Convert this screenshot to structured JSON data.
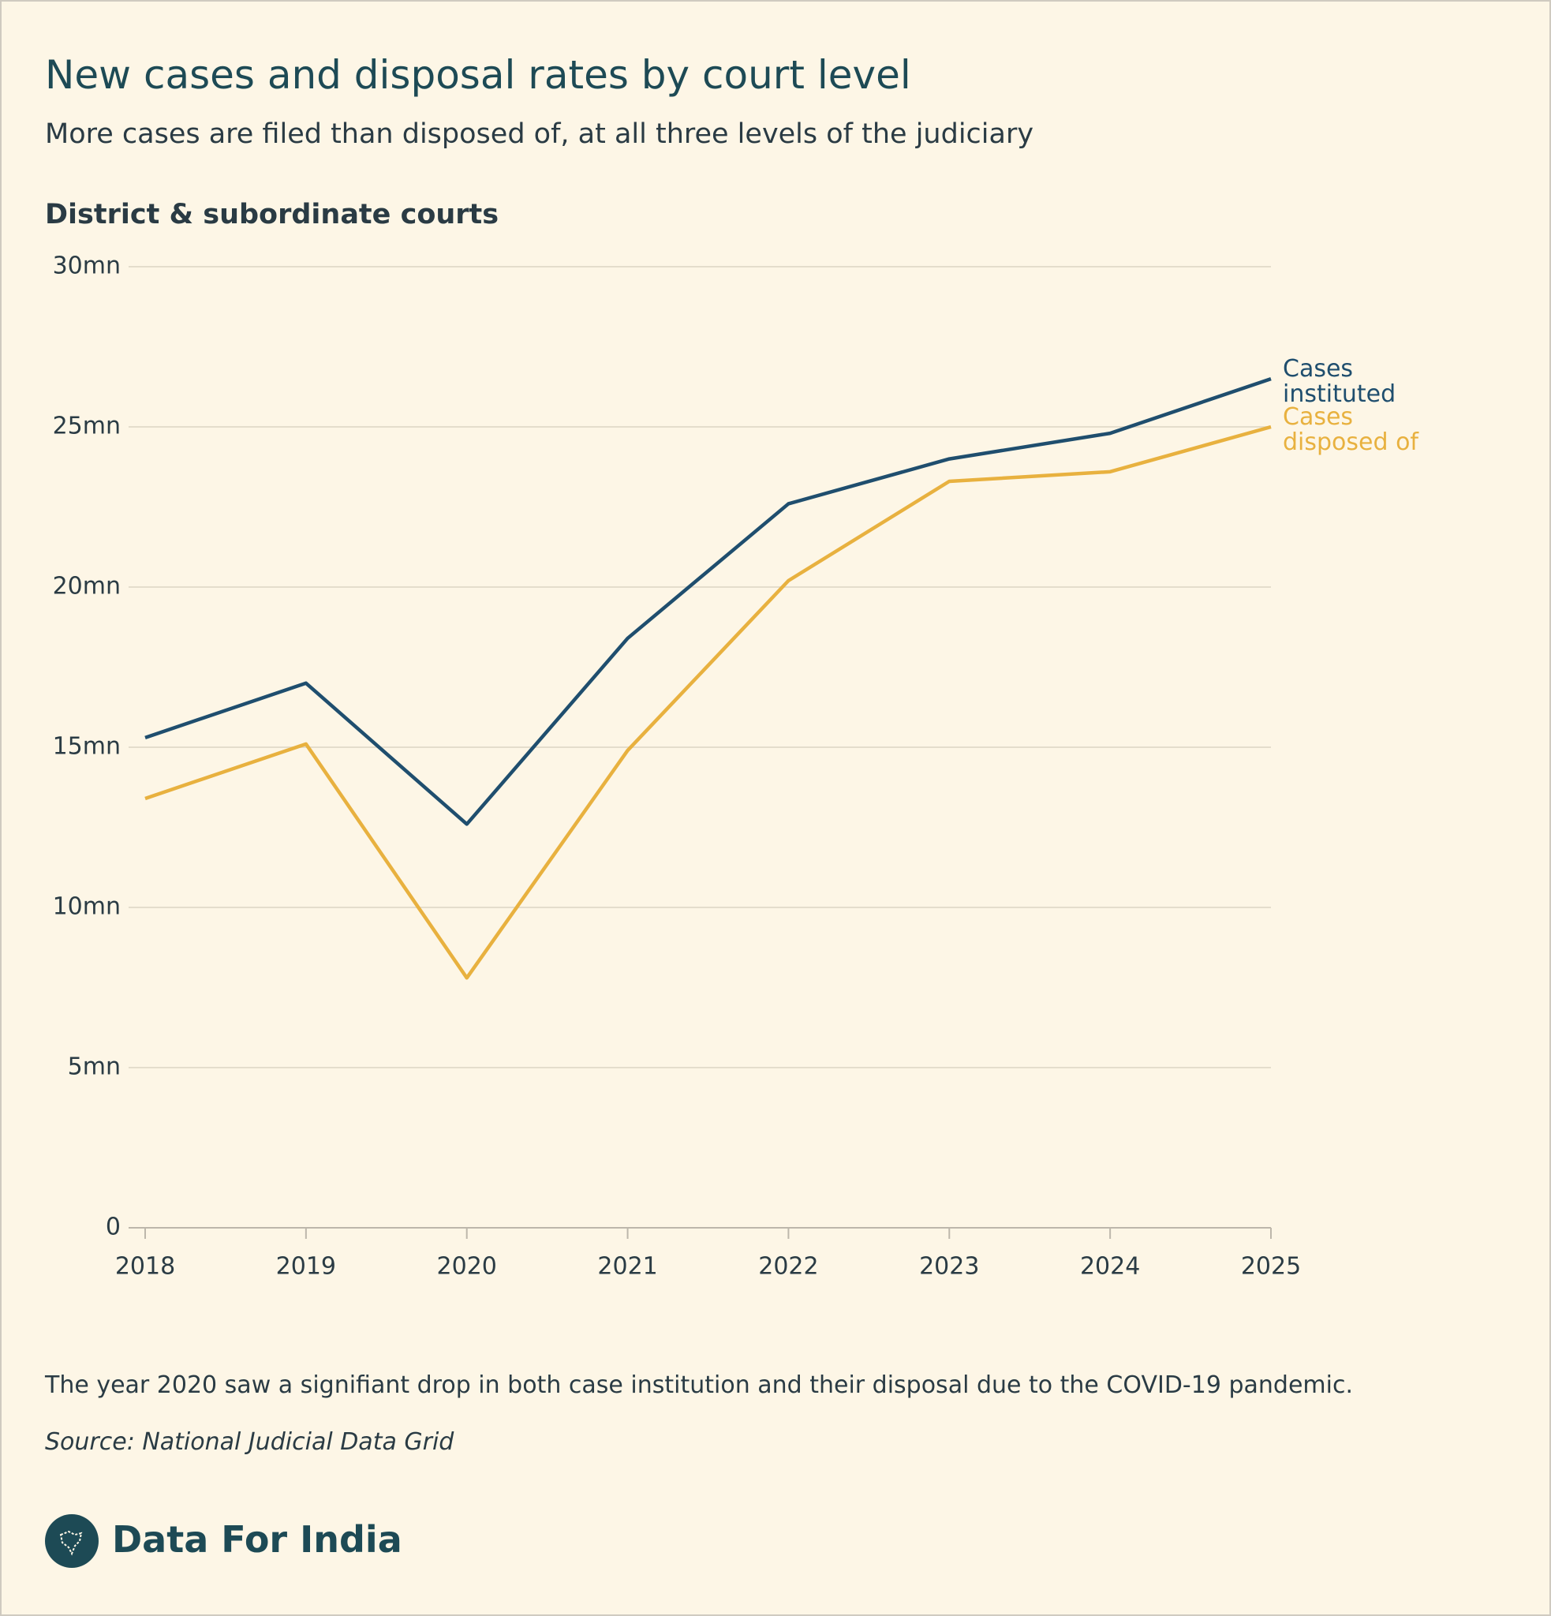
{
  "chart_data": {
    "type": "line",
    "title": "New cases and disposal rates by court level",
    "subtitle": "More cases are filed than disposed of, at all three levels of the judiciary",
    "panel_title": "District & subordinate courts",
    "categories": [
      "2018",
      "2019",
      "2020",
      "2021",
      "2022",
      "2023",
      "2024",
      "2025"
    ],
    "series": [
      {
        "name": "Cases instituted",
        "color": "#1f4e6e",
        "values": [
          15.3,
          17.0,
          12.6,
          18.4,
          22.6,
          24.0,
          24.8,
          26.5
        ]
      },
      {
        "name": "Cases disposed of",
        "color": "#e8b13f",
        "values": [
          13.4,
          15.1,
          7.8,
          14.9,
          20.2,
          23.3,
          23.6,
          25.0
        ]
      }
    ],
    "ylim": [
      0,
      30
    ],
    "yticks": [
      0,
      {
        "value": 5,
        "label": "5mn"
      },
      {
        "value": 10,
        "label": "10mn"
      },
      {
        "value": 15,
        "label": "15mn"
      },
      {
        "value": 20,
        "label": "20mn"
      },
      {
        "value": 25,
        "label": "25mn"
      },
      {
        "value": 30,
        "label": "30mn"
      }
    ],
    "grid": true,
    "note": "The year 2020 saw a signifiant drop in both case institution and their disposal due to the COVID-19 pandemic.",
    "source": "Source: National Judicial Data Grid"
  },
  "brand": "Data For India"
}
